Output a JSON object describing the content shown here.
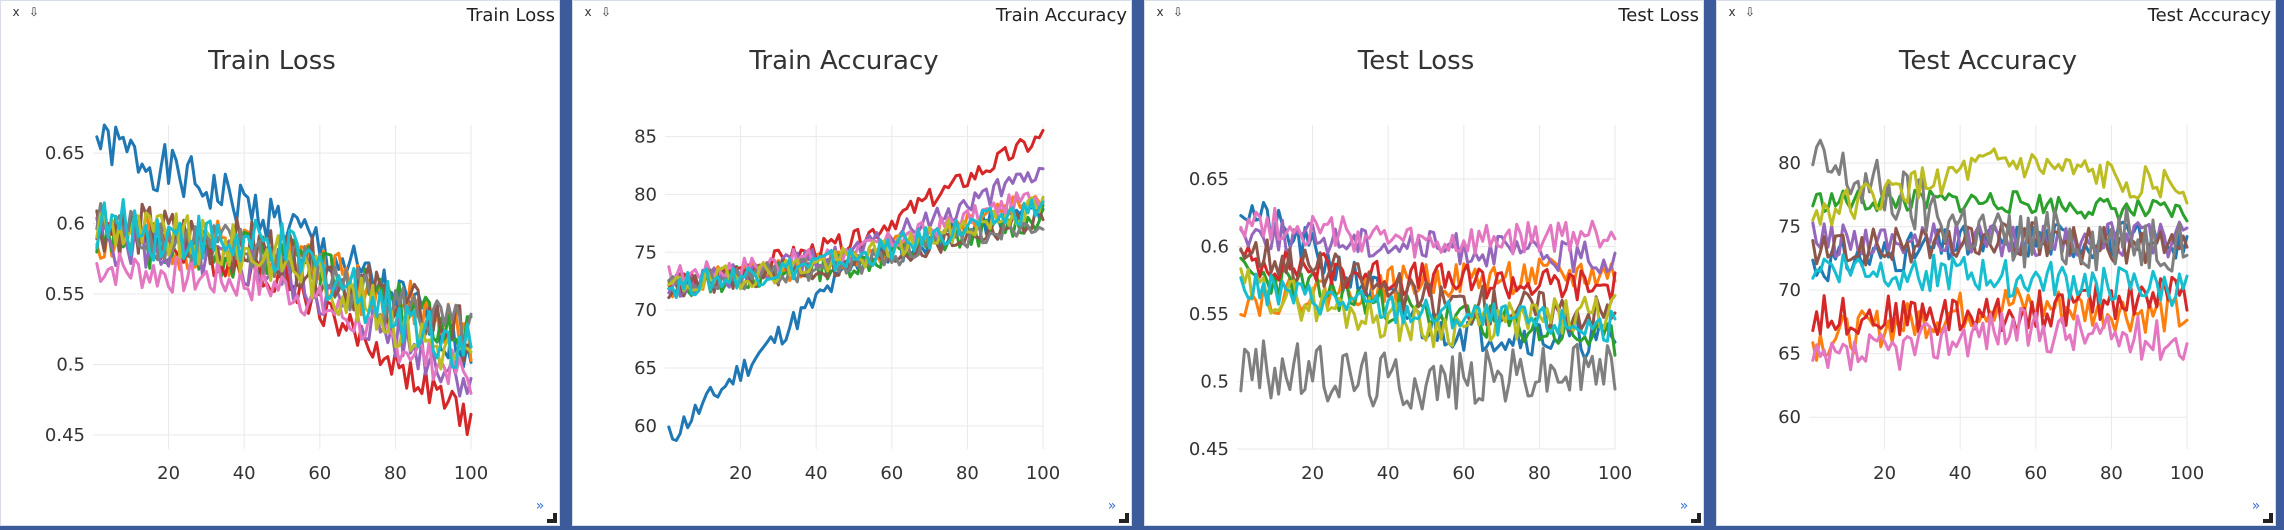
{
  "window": {
    "name": "training-dashboard"
  },
  "panes": [
    {
      "pane_title": "Train Loss",
      "controls": {
        "close": "x",
        "download": "⇩"
      },
      "chart_data": {
        "type": "line",
        "title": "Train Loss",
        "xlim": [
          0,
          100
        ],
        "ylim": [
          0.44,
          0.67
        ],
        "xticks": [
          20,
          40,
          60,
          80,
          100
        ],
        "yticks": [
          0.45,
          0.5,
          0.55,
          0.6,
          0.65
        ],
        "grid": true,
        "legend": "none",
        "series": [
          {
            "color": "#1f77b4",
            "trend": [
              0.66,
              0.6,
              0.51
            ],
            "noise": 0.018,
            "seed": 1
          },
          {
            "color": "#ff7f0e",
            "trend": [
              0.59,
              0.58,
              0.52
            ],
            "noise": 0.02,
            "seed": 2
          },
          {
            "color": "#2ca02c",
            "trend": [
              0.59,
              0.575,
              0.52
            ],
            "noise": 0.018,
            "seed": 3
          },
          {
            "color": "#d62728",
            "trend": [
              0.6,
              0.56,
              0.46
            ],
            "noise": 0.012,
            "seed": 4
          },
          {
            "color": "#9467bd",
            "trend": [
              0.59,
              0.565,
              0.49
            ],
            "noise": 0.018,
            "seed": 5
          },
          {
            "color": "#8c564b",
            "trend": [
              0.6,
              0.58,
              0.52
            ],
            "noise": 0.02,
            "seed": 6
          },
          {
            "color": "#e377c2",
            "trend": [
              0.57,
              0.555,
              0.49
            ],
            "noise": 0.014,
            "seed": 7
          },
          {
            "color": "#7f7f7f",
            "trend": [
              0.6,
              0.575,
              0.52
            ],
            "noise": 0.018,
            "seed": 8
          },
          {
            "color": "#bcbd22",
            "trend": [
              0.6,
              0.575,
              0.5
            ],
            "noise": 0.018,
            "seed": 9
          },
          {
            "color": "#17becf",
            "trend": [
              0.6,
              0.58,
              0.51
            ],
            "noise": 0.02,
            "seed": 10
          }
        ]
      }
    },
    {
      "pane_title": "Train Accuracy",
      "controls": {
        "close": "x",
        "download": "⇩"
      },
      "chart_data": {
        "type": "line",
        "title": "Train Accuracy",
        "xlim": [
          0,
          100
        ],
        "ylim": [
          58,
          86
        ],
        "xticks": [
          20,
          40,
          60,
          80,
          100
        ],
        "yticks": [
          60,
          65,
          70,
          75,
          80,
          85
        ],
        "grid": true,
        "legend": "none",
        "series": [
          {
            "color": "#1f77b4",
            "trend": [
              59,
              74,
              79
            ],
            "noise": 1.1,
            "seed": 11
          },
          {
            "color": "#ff7f0e",
            "trend": [
              72,
              74.5,
              80
            ],
            "noise": 1.1,
            "seed": 12
          },
          {
            "color": "#2ca02c",
            "trend": [
              72,
              74,
              78
            ],
            "noise": 1.1,
            "seed": 13
          },
          {
            "color": "#d62728",
            "trend": [
              72,
              76,
              85
            ],
            "noise": 0.9,
            "seed": 14
          },
          {
            "color": "#9467bd",
            "trend": [
              72,
              75,
              82
            ],
            "noise": 1.0,
            "seed": 15
          },
          {
            "color": "#8c564b",
            "trend": [
              72,
              74,
              78
            ],
            "noise": 1.1,
            "seed": 16
          },
          {
            "color": "#e377c2",
            "trend": [
              73,
              75,
              80
            ],
            "noise": 0.9,
            "seed": 17
          },
          {
            "color": "#7f7f7f",
            "trend": [
              72,
              74,
              78
            ],
            "noise": 1.1,
            "seed": 18
          },
          {
            "color": "#bcbd22",
            "trend": [
              72,
              74.5,
              79
            ],
            "noise": 1.1,
            "seed": 19
          },
          {
            "color": "#17becf",
            "trend": [
              72,
              74.5,
              79
            ],
            "noise": 1.1,
            "seed": 20
          }
        ]
      }
    },
    {
      "pane_title": "Test Loss",
      "controls": {
        "close": "x",
        "download": "⇩"
      },
      "chart_data": {
        "type": "line",
        "title": "Test Loss",
        "xlim": [
          0,
          100
        ],
        "ylim": [
          0.45,
          0.69
        ],
        "xticks": [
          20,
          40,
          60,
          80,
          100
        ],
        "yticks": [
          0.45,
          0.5,
          0.55,
          0.6,
          0.65
        ],
        "grid": true,
        "legend": "none",
        "series": [
          {
            "color": "#1f77b4",
            "trend": [
              0.63,
              0.54,
              0.53
            ],
            "noise": 0.015,
            "seed": 21
          },
          {
            "color": "#ff7f0e",
            "trend": [
              0.56,
              0.575,
              0.58
            ],
            "noise": 0.013,
            "seed": 22
          },
          {
            "color": "#2ca02c",
            "trend": [
              0.58,
              0.55,
              0.53
            ],
            "noise": 0.013,
            "seed": 23
          },
          {
            "color": "#d62728",
            "trend": [
              0.59,
              0.575,
              0.57
            ],
            "noise": 0.013,
            "seed": 24
          },
          {
            "color": "#9467bd",
            "trend": [
              0.61,
              0.6,
              0.59
            ],
            "noise": 0.012,
            "seed": 25
          },
          {
            "color": "#8c564b",
            "trend": [
              0.6,
              0.56,
              0.55
            ],
            "noise": 0.015,
            "seed": 26
          },
          {
            "color": "#e377c2",
            "trend": [
              0.62,
              0.6,
              0.61
            ],
            "noise": 0.013,
            "seed": 27
          },
          {
            "color": "#7f7f7f",
            "trend": [
              0.51,
              0.5,
              0.51
            ],
            "noise": 0.022,
            "seed": 28
          },
          {
            "color": "#bcbd22",
            "trend": [
              0.57,
              0.54,
              0.55
            ],
            "noise": 0.015,
            "seed": 29
          },
          {
            "color": "#17becf",
            "trend": [
              0.57,
              0.55,
              0.54
            ],
            "noise": 0.012,
            "seed": 30
          }
        ]
      }
    },
    {
      "pane_title": "Test Accuracy",
      "controls": {
        "close": "x",
        "download": "⇩"
      },
      "chart_data": {
        "type": "line",
        "title": "Test Accuracy",
        "xlim": [
          0,
          100
        ],
        "ylim": [
          57.5,
          83
        ],
        "xticks": [
          20,
          40,
          60,
          80,
          100
        ],
        "yticks": [
          60,
          65,
          70,
          75,
          80
        ],
        "grid": true,
        "legend": "none",
        "series": [
          {
            "color": "#1f77b4",
            "trend": [
              72,
              74,
              74
            ],
            "noise": 1.5,
            "seed": 31
          },
          {
            "color": "#ff7f0e",
            "trend": [
              66,
              69,
              68
            ],
            "noise": 1.6,
            "seed": 32
          },
          {
            "color": "#2ca02c",
            "trend": [
              77,
              77,
              76
            ],
            "noise": 0.9,
            "seed": 33
          },
          {
            "color": "#d62728",
            "trend": [
              68,
              68,
              70
            ],
            "noise": 1.6,
            "seed": 34
          },
          {
            "color": "#9467bd",
            "trend": [
              74,
              74,
              74
            ],
            "noise": 1.4,
            "seed": 35
          },
          {
            "color": "#8c564b",
            "trend": [
              73,
              74,
              73
            ],
            "noise": 1.5,
            "seed": 36
          },
          {
            "color": "#e377c2",
            "trend": [
              64,
              67,
              66
            ],
            "noise": 1.7,
            "seed": 37
          },
          {
            "color": "#7f7f7f",
            "trend": [
              80,
              74,
              74
            ],
            "noise": 2.5,
            "seed": 38
          },
          {
            "color": "#bcbd22",
            "trend": [
              76,
              80,
              78
            ],
            "noise": 1.3,
            "seed": 39
          },
          {
            "color": "#17becf",
            "trend": [
              72,
              71,
              70
            ],
            "noise": 1.5,
            "seed": 40
          }
        ]
      }
    }
  ]
}
